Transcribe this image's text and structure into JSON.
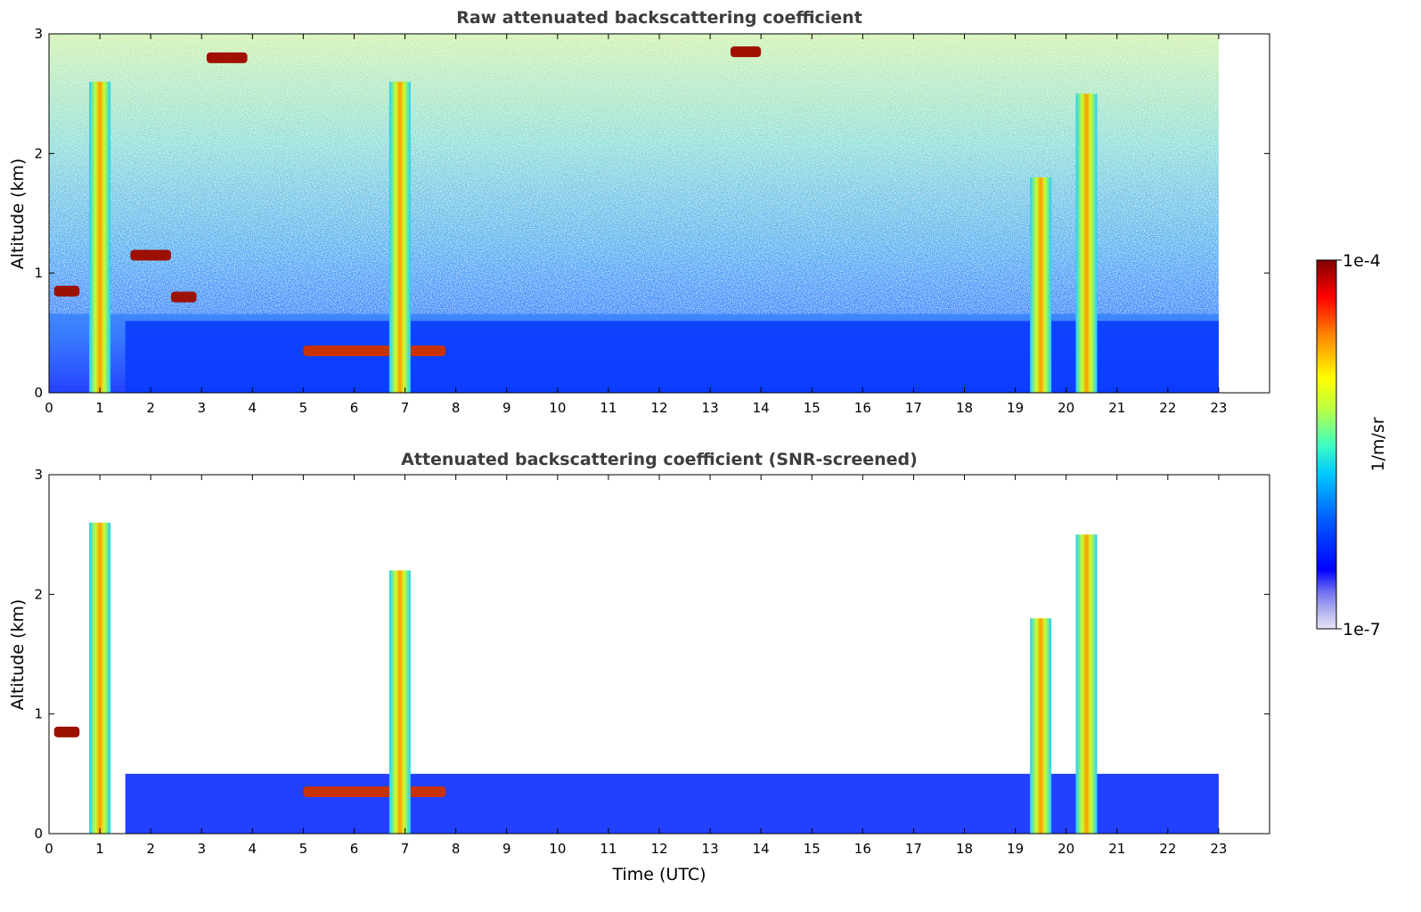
{
  "chart_data": [
    {
      "type": "heatmap",
      "title": "Raw attenuated backscattering coefficient",
      "xlabel": "",
      "ylabel": "Altitude (km)",
      "xlim": [
        0,
        24
      ],
      "ylim": [
        0,
        3
      ],
      "xticks": [
        "0",
        "1",
        "2",
        "3",
        "4",
        "5",
        "6",
        "7",
        "8",
        "9",
        "10",
        "11",
        "12",
        "13",
        "14",
        "15",
        "16",
        "17",
        "18",
        "19",
        "20",
        "21",
        "22",
        "23"
      ],
      "yticks": [
        "0",
        "1",
        "2",
        "3"
      ],
      "data_extent_x": [
        0,
        23
      ],
      "features": [
        {
          "kind": "boundary_layer",
          "x_range": [
            1.5,
            23
          ],
          "top_km": 0.6
        },
        {
          "kind": "cloud_layer",
          "x_range": [
            0.1,
            0.6
          ],
          "altitude_km": 0.85
        },
        {
          "kind": "cloud_layer",
          "x_range": [
            1.6,
            2.4
          ],
          "altitude_km": 1.15
        },
        {
          "kind": "cloud_layer",
          "x_range": [
            2.4,
            2.9
          ],
          "altitude_km": 0.8
        },
        {
          "kind": "aerosol_layer",
          "x_range": [
            5.0,
            7.8
          ],
          "altitude_km": 0.35
        },
        {
          "kind": "precipitation_column",
          "x": 1.0,
          "top_km": 2.6
        },
        {
          "kind": "precipitation_column",
          "x": 6.9,
          "top_km": 2.6
        },
        {
          "kind": "precipitation_column",
          "x": 19.5,
          "top_km": 1.8
        },
        {
          "kind": "precipitation_column",
          "x": 20.4,
          "top_km": 2.5
        },
        {
          "kind": "cloud_fragment",
          "x_range": [
            3.1,
            3.9
          ],
          "altitude_km": 2.8
        },
        {
          "kind": "cloud_fragment",
          "x_range": [
            13.4,
            14.0
          ],
          "altitude_km": 2.85
        }
      ]
    },
    {
      "type": "heatmap",
      "title": "Attenuated backscattering coefficient (SNR-screened)",
      "xlabel": "Time (UTC)",
      "ylabel": "Altitude (km)",
      "xlim": [
        0,
        24
      ],
      "ylim": [
        0,
        3
      ],
      "xticks": [
        "0",
        "1",
        "2",
        "3",
        "4",
        "5",
        "6",
        "7",
        "8",
        "9",
        "10",
        "11",
        "12",
        "13",
        "14",
        "15",
        "16",
        "17",
        "18",
        "19",
        "20",
        "21",
        "22",
        "23"
      ],
      "yticks": [
        "0",
        "1",
        "2",
        "3"
      ],
      "data_extent_x": [
        0,
        23
      ],
      "features": [
        {
          "kind": "boundary_layer_screened",
          "x_range": [
            1.5,
            23
          ],
          "top_km": 0.5
        },
        {
          "kind": "cloud_layer",
          "x_range": [
            0.1,
            0.6
          ],
          "altitude_km": 0.85
        },
        {
          "kind": "aerosol_layer",
          "x_range": [
            5.0,
            7.8
          ],
          "altitude_km": 0.35
        },
        {
          "kind": "precipitation_column",
          "x": 1.0,
          "top_km": 2.6
        },
        {
          "kind": "precipitation_column",
          "x": 6.9,
          "top_km": 2.2
        },
        {
          "kind": "precipitation_column",
          "x": 19.5,
          "top_km": 1.8
        },
        {
          "kind": "precipitation_column",
          "x": 20.4,
          "top_km": 2.5
        }
      ]
    }
  ],
  "colorbar": {
    "label": "1/m/sr",
    "max_label": "1e-4",
    "min_label": "1e-7",
    "scale": "log",
    "colormap": "jet"
  }
}
